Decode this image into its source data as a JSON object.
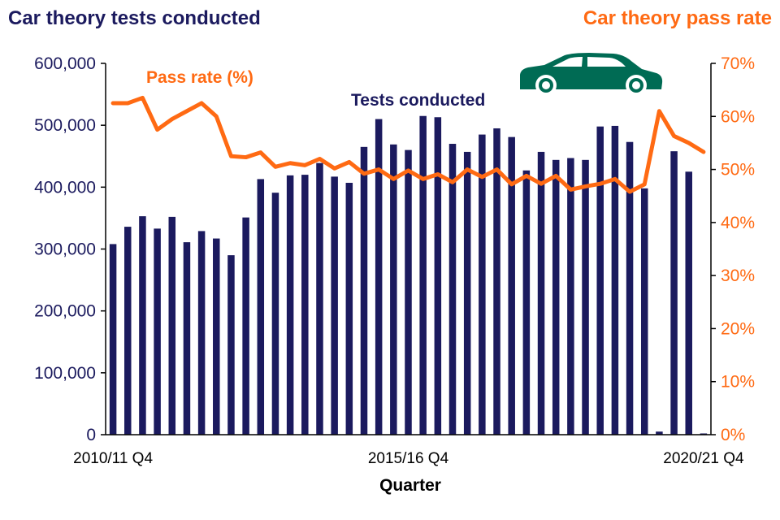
{
  "colors": {
    "navy": "#1b1a5e",
    "orange": "#ff6a13",
    "car_green": "#006b54",
    "axis": "#000000",
    "white": "#ffffff"
  },
  "chart_data": {
    "type": "bar+line",
    "title_left": "Car theory tests conducted",
    "title_right": "Car theory pass rate",
    "xlabel": "Quarter",
    "x_tick_labels": [
      "2010/11 Q4",
      "2015/16 Q4",
      "2020/21 Q4"
    ],
    "x_tick_label_indices": [
      0,
      20,
      40
    ],
    "categories_count": 41,
    "left_axis": {
      "min": 0,
      "max": 600000,
      "ticks": [
        0,
        100000,
        200000,
        300000,
        400000,
        500000,
        600000
      ],
      "tick_labels": [
        "0",
        "100,000",
        "200,000",
        "300,000",
        "400,000",
        "500,000",
        "600,000"
      ]
    },
    "right_axis": {
      "min": 0,
      "max": 70,
      "ticks": [
        0,
        10,
        20,
        30,
        40,
        50,
        60,
        70
      ],
      "tick_labels": [
        "0%",
        "10%",
        "20%",
        "30%",
        "40%",
        "50%",
        "60%",
        "70%"
      ]
    },
    "series": [
      {
        "name": "Tests conducted",
        "type": "bar",
        "axis": "left",
        "values": [
          308000,
          336000,
          353000,
          333000,
          352000,
          311000,
          329000,
          317000,
          290000,
          351000,
          413000,
          391000,
          419000,
          420000,
          439000,
          417000,
          407000,
          465000,
          510000,
          469000,
          460000,
          515000,
          513000,
          470000,
          457000,
          485000,
          495000,
          481000,
          427000,
          457000,
          444000,
          447000,
          444000,
          498000,
          499000,
          473000,
          398000,
          5000,
          458000,
          425000,
          2000
        ]
      },
      {
        "name": "Pass rate (%)",
        "type": "line",
        "axis": "right",
        "values": [
          62.5,
          62.5,
          63.5,
          57.5,
          59.5,
          61.0,
          62.5,
          60.0,
          52.5,
          52.3,
          53.2,
          50.5,
          51.2,
          50.8,
          52.0,
          50.2,
          51.4,
          49.2,
          50.0,
          48.2,
          49.8,
          48.2,
          49.1,
          47.6,
          50.0,
          48.6,
          50.0,
          47.2,
          48.8,
          47.3,
          48.8,
          46.2,
          46.8,
          47.3,
          48.2,
          45.8,
          47.2,
          61.0,
          56.3,
          55.0,
          53.3
        ]
      }
    ],
    "annotations": [
      {
        "text": "Pass rate (%)",
        "series": "Pass rate (%)"
      },
      {
        "text": "Tests conducted",
        "series": "Tests conducted"
      }
    ],
    "decoration": "car-icon"
  }
}
